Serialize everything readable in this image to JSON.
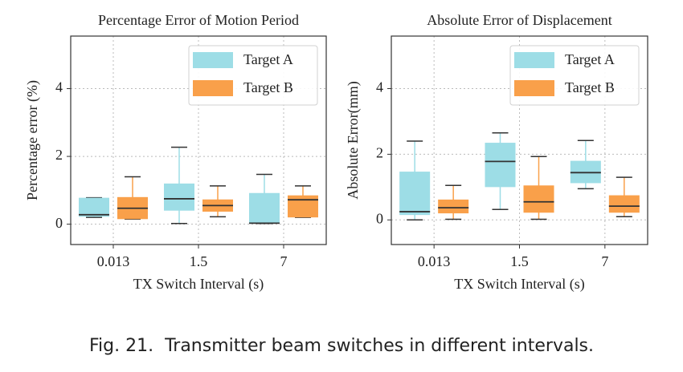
{
  "chart_data": [
    {
      "type": "box",
      "title": "Percentage Error of Motion Period",
      "xlabel": "TX Switch Interval (s)",
      "ylabel": "Percentage error (%)",
      "categories": [
        "0.013",
        "1.5",
        "7"
      ],
      "ylim": [
        -0.6,
        5.55
      ],
      "yticks": [
        0,
        2,
        4
      ],
      "grid": true,
      "legend": "upper right",
      "series": [
        {
          "name": "Target A",
          "color": "#9ddde6",
          "min": [
            0.2,
            0.02,
            0.02
          ],
          "q1": [
            0.22,
            0.4,
            0.02
          ],
          "median": [
            0.28,
            0.75,
            0.03
          ],
          "q3": [
            0.78,
            1.2,
            0.92
          ],
          "max": [
            0.78,
            2.27,
            1.47
          ]
        },
        {
          "name": "Target B",
          "color": "#f9a04a",
          "min": [
            0.15,
            0.22,
            0.2
          ],
          "q1": [
            0.15,
            0.37,
            0.2
          ],
          "median": [
            0.47,
            0.55,
            0.72
          ],
          "q3": [
            0.8,
            0.73,
            0.85
          ],
          "max": [
            1.4,
            1.13,
            1.13
          ]
        }
      ]
    },
    {
      "type": "box",
      "title": "Absolute Error of Displacement",
      "xlabel": "TX Switch Interval (s)",
      "ylabel": "Absolute Error(mm)",
      "categories": [
        "0.013",
        "1.5",
        "7"
      ],
      "ylim": [
        -0.75,
        5.6
      ],
      "yticks": [
        0,
        2,
        4
      ],
      "grid": true,
      "legend": "upper right",
      "series": [
        {
          "name": "Target A",
          "color": "#9ddde6",
          "min": [
            0,
            0.32,
            0.95
          ],
          "q1": [
            0.15,
            1.0,
            1.12
          ],
          "median": [
            0.25,
            1.78,
            1.44
          ],
          "q3": [
            1.47,
            2.35,
            1.8
          ],
          "max": [
            2.4,
            2.65,
            2.42
          ]
        },
        {
          "name": "Target B",
          "color": "#f9a04a",
          "min": [
            0.02,
            0.02,
            0.1
          ],
          "q1": [
            0.2,
            0.22,
            0.22
          ],
          "median": [
            0.37,
            0.55,
            0.42
          ],
          "q3": [
            0.62,
            1.05,
            0.75
          ],
          "max": [
            1.05,
            1.93,
            1.3
          ]
        }
      ]
    }
  ],
  "caption": "Fig. 21.  Transmitter beam switches in different intervals."
}
